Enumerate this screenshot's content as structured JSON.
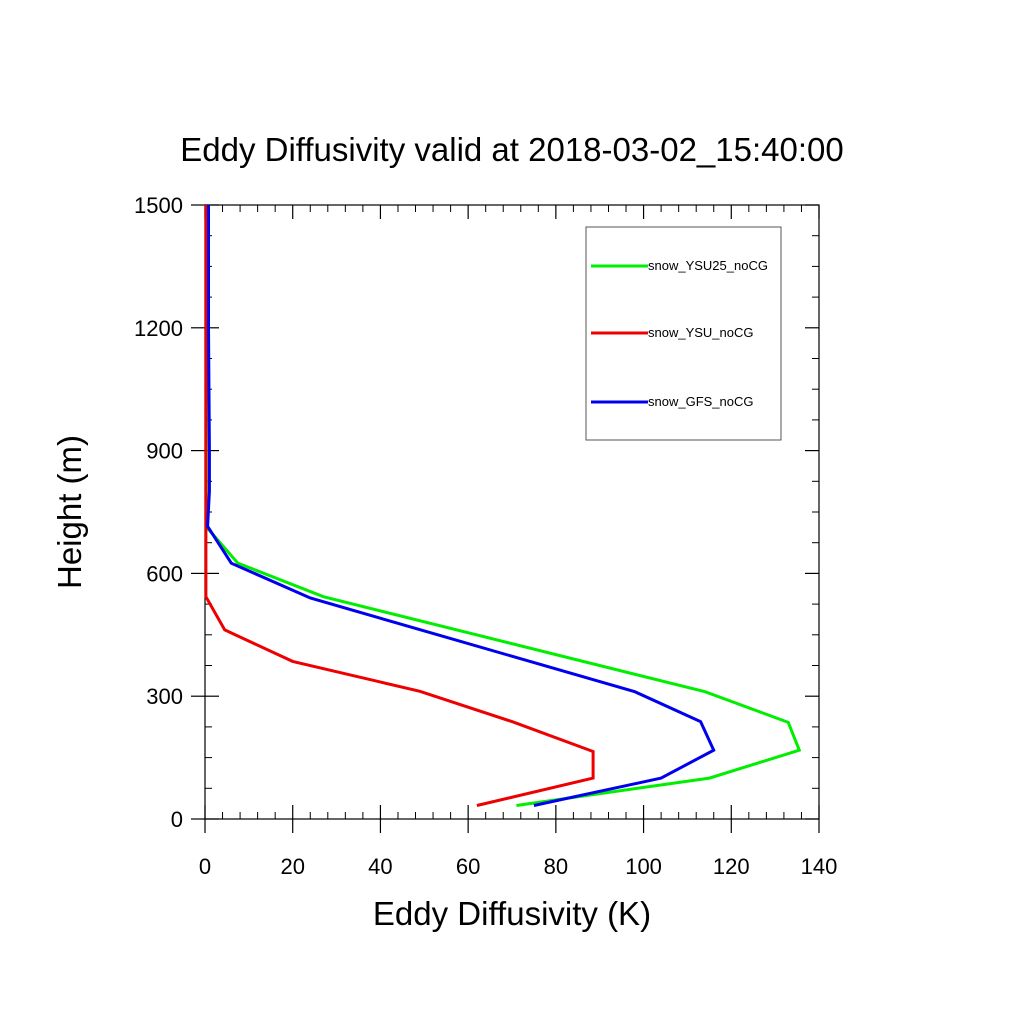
{
  "chart_data": {
    "type": "line",
    "title": "Eddy Diffusivity valid at 2018-03-02_15:40:00",
    "xlabel": "Eddy Diffusivity (K)",
    "ylabel": "Height (m)",
    "xlim": [
      0,
      140
    ],
    "ylim": [
      0,
      1500
    ],
    "xticks": [
      0,
      20,
      40,
      60,
      80,
      100,
      120,
      140
    ],
    "yticks": [
      0,
      300,
      600,
      900,
      1200,
      1500
    ],
    "grid": false,
    "legend_position": "top-right",
    "series": [
      {
        "name": "snow_YSU25_noCG",
        "color": "#00ee00",
        "points": [
          [
            71,
            33
          ],
          [
            115,
            100
          ],
          [
            135.5,
            168
          ],
          [
            133,
            236
          ],
          [
            114,
            311
          ],
          [
            27,
            543
          ],
          [
            7.5,
            625
          ],
          [
            0.6,
            710
          ],
          [
            0.3,
            760
          ],
          [
            0.3,
            900
          ],
          [
            0.3,
            1200
          ],
          [
            0.3,
            1500
          ]
        ]
      },
      {
        "name": "snow_YSU_noCG",
        "color": "#ee0000",
        "points": [
          [
            62,
            33
          ],
          [
            88.5,
            100
          ],
          [
            88.5,
            165
          ],
          [
            70,
            238
          ],
          [
            49,
            312
          ],
          [
            20,
            385
          ],
          [
            4.5,
            462
          ],
          [
            0.2,
            543
          ],
          [
            0.2,
            700
          ],
          [
            0.2,
            1000
          ],
          [
            0.2,
            1500
          ]
        ]
      },
      {
        "name": "snow_GFS_noCG",
        "color": "#0000ee",
        "points": [
          [
            75,
            33
          ],
          [
            104,
            100
          ],
          [
            116,
            168
          ],
          [
            113,
            238
          ],
          [
            98,
            311
          ],
          [
            24,
            540
          ],
          [
            6,
            625
          ],
          [
            0.6,
            715
          ],
          [
            1,
            800
          ],
          [
            1,
            900
          ],
          [
            0.8,
            1200
          ],
          [
            0.8,
            1500
          ]
        ]
      }
    ]
  }
}
